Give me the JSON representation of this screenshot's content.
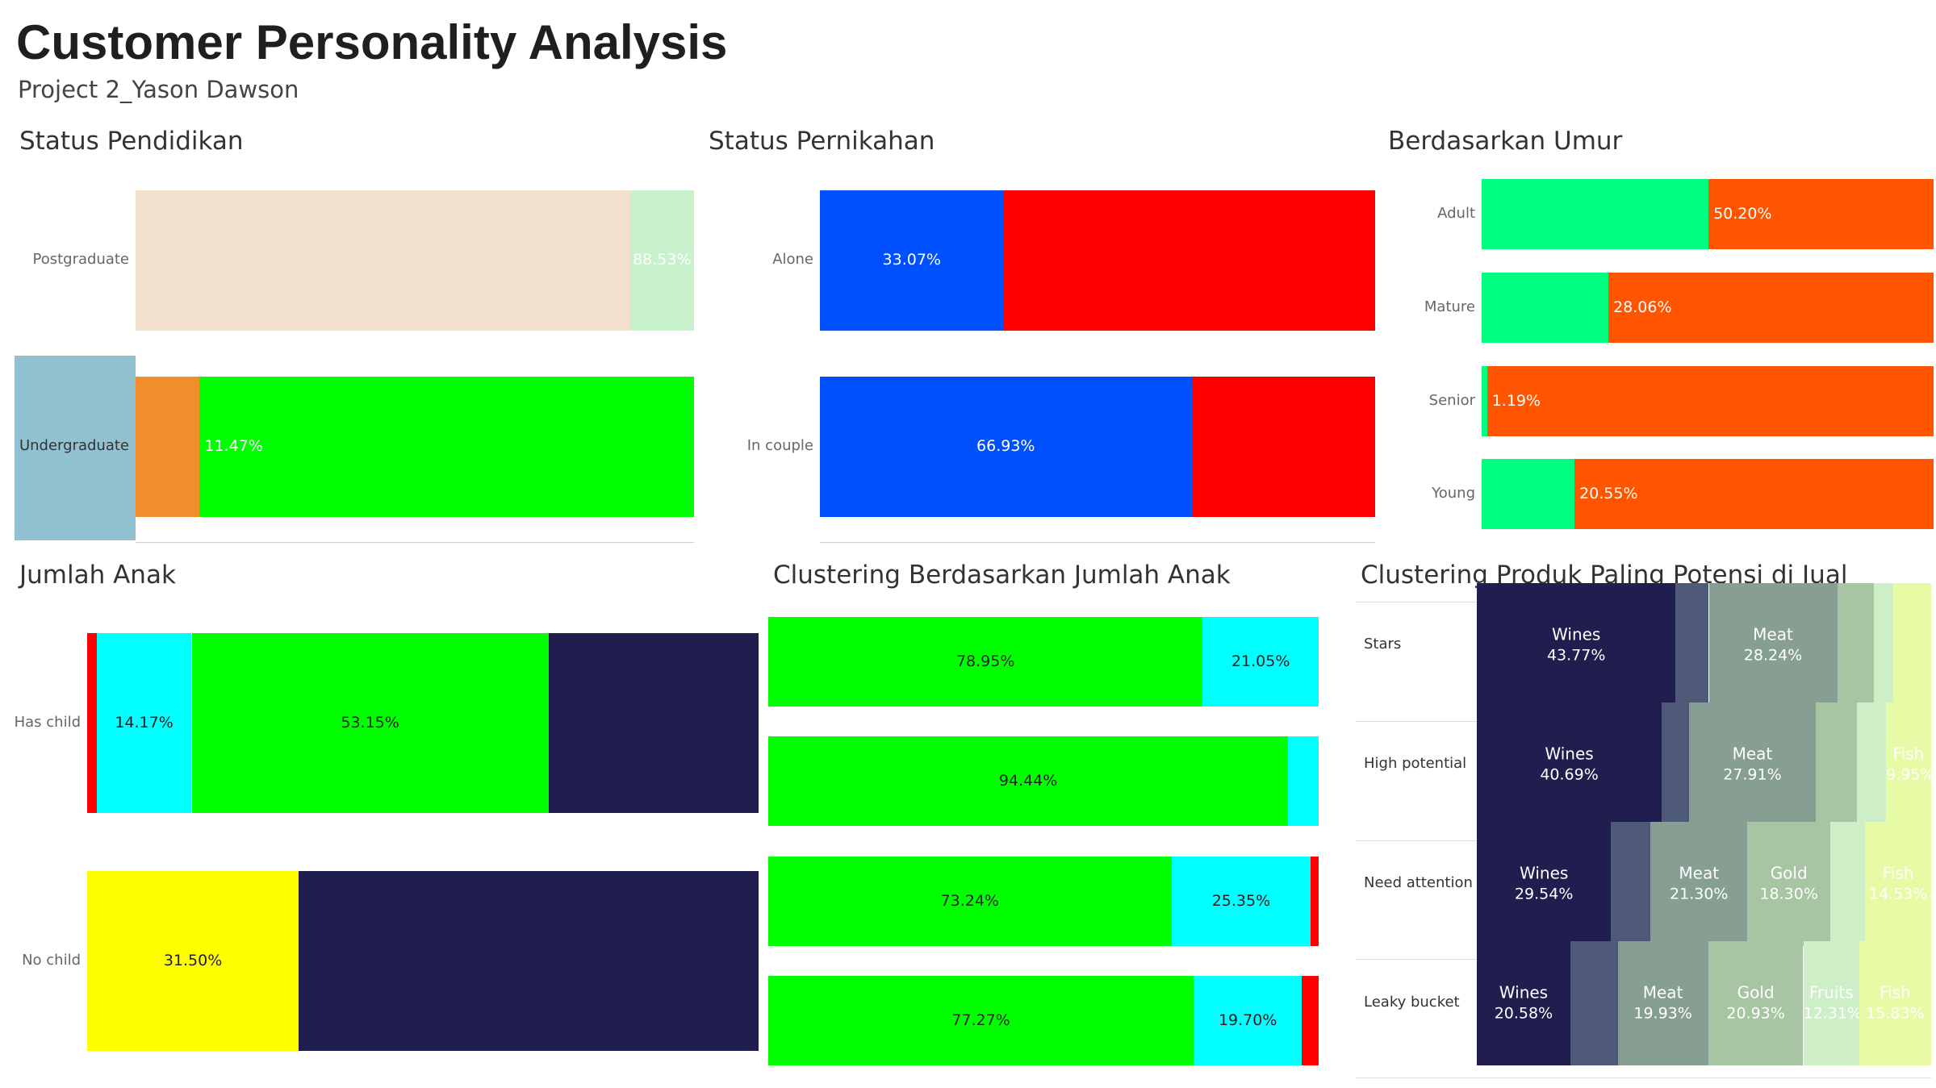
{
  "header": {
    "title": "Customer Personality Analysis",
    "subtitle": "Project 2_Yason Dawson"
  },
  "chart_data": [
    {
      "id": "pendidikan",
      "title": "Status Pendidikan",
      "type": "bar",
      "categories": [
        "Postgraduate",
        "Undergraduate"
      ],
      "highlighted_category": "Undergraduate",
      "highlight_color": "#92c2d1",
      "rows": [
        {
          "category": "Postgraduate",
          "segments": [
            {
              "value": 88.53,
              "label": "",
              "color": "#f2e0cc",
              "text_color": "#ffffff"
            },
            {
              "value": 11.47,
              "label": "88.53%",
              "color": "#c7f2cb",
              "text_color": "#ffffff"
            }
          ]
        },
        {
          "category": "Undergraduate",
          "segments": [
            {
              "value": 11.47,
              "label": "",
              "color": "#f28e2b",
              "text_color": "#ffffff"
            },
            {
              "value": 88.53,
              "label": "11.47%",
              "color": "#00ff00",
              "text_color": "#ffffff",
              "label_align": "left"
            }
          ]
        }
      ]
    },
    {
      "id": "pernikahan",
      "title": "Status Pernikahan",
      "type": "bar",
      "categories": [
        "Alone",
        "In couple"
      ],
      "rows": [
        {
          "category": "Alone",
          "segments": [
            {
              "value": 33.07,
              "label": "33.07%",
              "color": "#0050ff",
              "text_color": "#ffffff"
            },
            {
              "value": 66.93,
              "label": "",
              "color": "#ff0000",
              "text_color": "#ffffff"
            }
          ]
        },
        {
          "category": "In couple",
          "segments": [
            {
              "value": 66.93,
              "label": "66.93%",
              "color": "#0050ff",
              "text_color": "#ffffff"
            },
            {
              "value": 33.07,
              "label": "",
              "color": "#ff0000",
              "text_color": "#ffffff"
            }
          ]
        }
      ]
    },
    {
      "id": "umur",
      "title": "Berdasarkan Umur",
      "type": "bar",
      "categories": [
        "Adult",
        "Mature",
        "Senior",
        "Young"
      ],
      "rows": [
        {
          "category": "Adult",
          "segments": [
            {
              "value": 50.2,
              "label": "",
              "color": "#00ff7f",
              "text_color": "#ffffff"
            },
            {
              "value": 49.8,
              "label": "50.20%",
              "color": "#ff5500",
              "text_color": "#ffffff",
              "label_align": "left"
            }
          ]
        },
        {
          "category": "Mature",
          "segments": [
            {
              "value": 28.06,
              "label": "",
              "color": "#00ff7f",
              "text_color": "#ffffff"
            },
            {
              "value": 71.94,
              "label": "28.06%",
              "color": "#ff5500",
              "text_color": "#ffffff",
              "label_align": "left"
            }
          ]
        },
        {
          "category": "Senior",
          "segments": [
            {
              "value": 1.19,
              "label": "",
              "color": "#00ff7f",
              "text_color": "#ffffff"
            },
            {
              "value": 98.81,
              "label": "1.19%",
              "color": "#ff5500",
              "text_color": "#ffffff",
              "label_align": "left"
            }
          ]
        },
        {
          "category": "Young",
          "segments": [
            {
              "value": 20.55,
              "label": "",
              "color": "#00ff7f",
              "text_color": "#ffffff"
            },
            {
              "value": 79.45,
              "label": "20.55%",
              "color": "#ff5500",
              "text_color": "#ffffff",
              "label_align": "left"
            }
          ]
        }
      ]
    },
    {
      "id": "anak",
      "title": "Jumlah Anak",
      "type": "bar",
      "categories": [
        "Has child",
        "No child"
      ],
      "rows": [
        {
          "category": "Has child",
          "segments": [
            {
              "value": 1.4,
              "label": "",
              "color": "#ff0000",
              "text_color": "#222222"
            },
            {
              "value": 14.17,
              "label": "14.17%",
              "color": "#00ffff",
              "text_color": "#222222"
            },
            {
              "value": 53.15,
              "label": "53.15%",
              "color": "#00ff00",
              "text_color": "#222222"
            },
            {
              "value": 31.28,
              "label": "",
              "color": "#201e4f",
              "text_color": "#ffffff"
            }
          ]
        },
        {
          "category": "No child",
          "segments": [
            {
              "value": 31.5,
              "label": "31.50%",
              "color": "#ffff00",
              "text_color": "#222222"
            },
            {
              "value": 68.5,
              "label": "",
              "color": "#201e4f",
              "text_color": "#ffffff"
            }
          ]
        }
      ]
    },
    {
      "id": "cluster-anak",
      "title": "Clustering Berdasarkan Jumlah Anak",
      "type": "bar",
      "rows": [
        {
          "category": "",
          "segments": [
            {
              "value": 78.95,
              "label": "78.95%",
              "color": "#00ff00",
              "text_color": "#222222"
            },
            {
              "value": 21.05,
              "label": "21.05%",
              "color": "#00ffff",
              "text_color": "#222222"
            }
          ]
        },
        {
          "category": "",
          "segments": [
            {
              "value": 94.44,
              "label": "94.44%",
              "color": "#00ff00",
              "text_color": "#222222"
            },
            {
              "value": 5.56,
              "label": "",
              "color": "#00ffff",
              "text_color": "#222222"
            }
          ]
        },
        {
          "category": "",
          "segments": [
            {
              "value": 73.24,
              "label": "73.24%",
              "color": "#00ff00",
              "text_color": "#222222"
            },
            {
              "value": 25.35,
              "label": "25.35%",
              "color": "#00ffff",
              "text_color": "#222222"
            },
            {
              "value": 1.41,
              "label": "",
              "color": "#ff0000",
              "text_color": "#222222"
            }
          ]
        },
        {
          "category": "",
          "segments": [
            {
              "value": 77.27,
              "label": "77.27%",
              "color": "#00ff00",
              "text_color": "#222222"
            },
            {
              "value": 19.7,
              "label": "19.70%",
              "color": "#00ffff",
              "text_color": "#222222"
            },
            {
              "value": 3.03,
              "label": "",
              "color": "#ff0000",
              "text_color": "#222222"
            }
          ]
        }
      ]
    },
    {
      "id": "produk",
      "title": "Clustering Produk Paling Potensi di Jual",
      "type": "bar",
      "categories": [
        "Stars",
        "High potential",
        "Need attention",
        "Leaky bucket"
      ],
      "rows": [
        {
          "category": "Stars",
          "segments": [
            {
              "value": 43.77,
              "name": "Wines",
              "label": "43.77%",
              "color": "#201e4f",
              "text_color": "#ffffff"
            },
            {
              "value": 7.3,
              "name": "",
              "label": "",
              "color": "#4f5a78",
              "text_color": "#ffffff"
            },
            {
              "value": 28.24,
              "name": "Meat",
              "label": "28.24%",
              "color": "#879e93",
              "text_color": "#ffffff"
            },
            {
              "value": 8.0,
              "name": "",
              "label": "",
              "color": "#a7c4a3",
              "text_color": "#ffffff"
            },
            {
              "value": 4.3,
              "name": "",
              "label": "",
              "color": "#cdeec6",
              "text_color": "#ffffff"
            },
            {
              "value": 8.39,
              "name": "",
              "label": "",
              "color": "#e7fba6",
              "text_color": "#ffffff"
            }
          ]
        },
        {
          "category": "High potential",
          "segments": [
            {
              "value": 40.69,
              "name": "Wines",
              "label": "40.69%",
              "color": "#201e4f",
              "text_color": "#ffffff"
            },
            {
              "value": 6.0,
              "name": "",
              "label": "",
              "color": "#4f5a78",
              "text_color": "#ffffff"
            },
            {
              "value": 27.91,
              "name": "Meat",
              "label": "27.91%",
              "color": "#879e93",
              "text_color": "#ffffff"
            },
            {
              "value": 9.0,
              "name": "",
              "label": "",
              "color": "#a7c4a3",
              "text_color": "#ffffff"
            },
            {
              "value": 6.45,
              "name": "",
              "label": "",
              "color": "#cdeec6",
              "text_color": "#ffffff"
            },
            {
              "value": 9.95,
              "name": "Fish",
              "label": "9.95%",
              "color": "#e7fba6",
              "text_color": "#ffffff"
            }
          ]
        },
        {
          "category": "Need attention",
          "segments": [
            {
              "value": 29.54,
              "name": "Wines",
              "label": "29.54%",
              "color": "#201e4f",
              "text_color": "#ffffff"
            },
            {
              "value": 8.7,
              "name": "",
              "label": "",
              "color": "#4f5a78",
              "text_color": "#ffffff"
            },
            {
              "value": 21.3,
              "name": "Meat",
              "label": "21.30%",
              "color": "#879e93",
              "text_color": "#ffffff"
            },
            {
              "value": 18.3,
              "name": "Gold",
              "label": "18.30%",
              "color": "#a7c4a3",
              "text_color": "#ffffff"
            },
            {
              "value": 7.63,
              "name": "",
              "label": "",
              "color": "#cdeec6",
              "text_color": "#ffffff"
            },
            {
              "value": 14.53,
              "name": "Fish",
              "label": "14.53%",
              "color": "#e7fba6",
              "text_color": "#ffffff"
            }
          ]
        },
        {
          "category": "Leaky bucket",
          "segments": [
            {
              "value": 20.58,
              "name": "Wines",
              "label": "20.58%",
              "color": "#201e4f",
              "text_color": "#ffffff"
            },
            {
              "value": 10.42,
              "name": "",
              "label": "",
              "color": "#4f5a78",
              "text_color": "#ffffff"
            },
            {
              "value": 19.93,
              "name": "Meat",
              "label": "19.93%",
              "color": "#879e93",
              "text_color": "#ffffff"
            },
            {
              "value": 20.93,
              "name": "Gold",
              "label": "20.93%",
              "color": "#a7c4a3",
              "text_color": "#ffffff"
            },
            {
              "value": 12.31,
              "name": "Fruits",
              "label": "12.31%",
              "color": "#cdeec6",
              "text_color": "#ffffff"
            },
            {
              "value": 15.83,
              "name": "Fish",
              "label": "15.83%",
              "color": "#e7fba6",
              "text_color": "#ffffff"
            }
          ]
        }
      ]
    }
  ]
}
